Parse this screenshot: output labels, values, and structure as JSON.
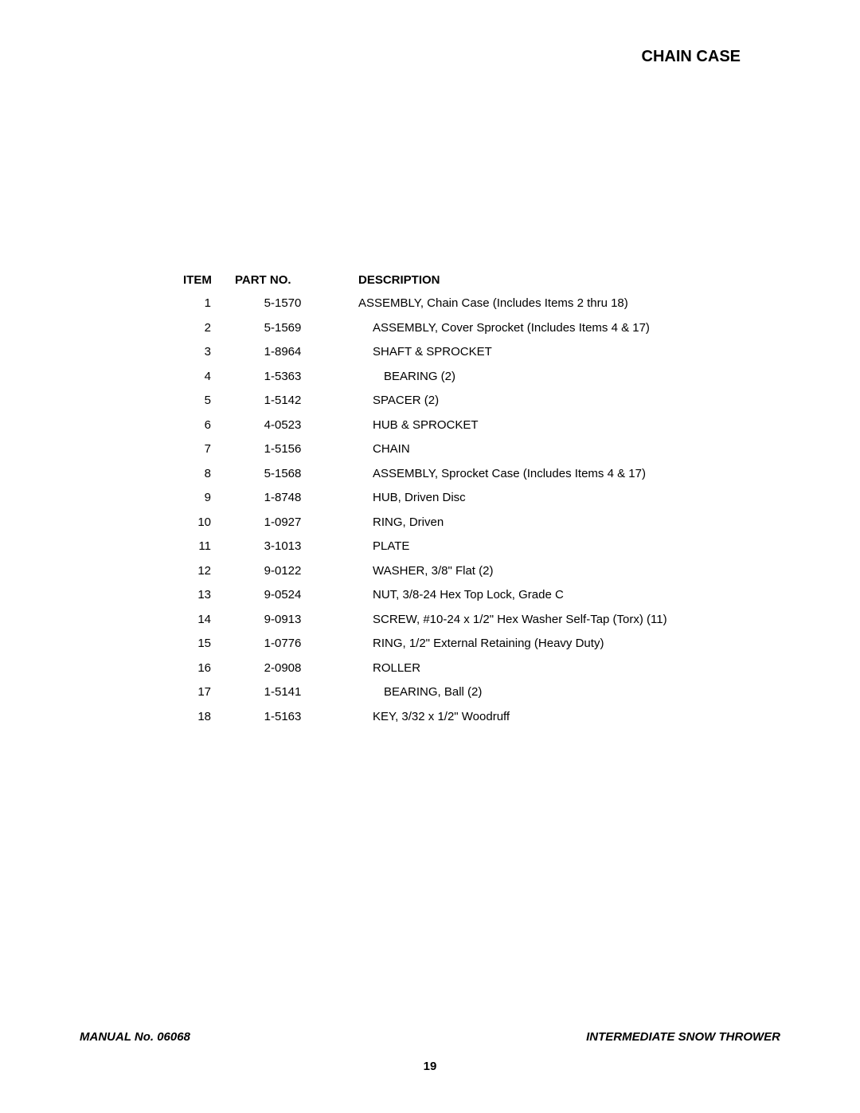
{
  "title": "CHAIN CASE",
  "table": {
    "headers": {
      "item": "ITEM",
      "partno": "PART NO.",
      "description": "DESCRIPTION"
    },
    "rows": [
      {
        "item": "1",
        "partno": "5-1570",
        "description": "ASSEMBLY, Chain Case (Includes Items 2 thru 18)",
        "indent": 0
      },
      {
        "item": "2",
        "partno": "5-1569",
        "description": "ASSEMBLY, Cover Sprocket (Includes Items 4 & 17)",
        "indent": 1
      },
      {
        "item": "3",
        "partno": "1-8964",
        "description": "SHAFT & SPROCKET",
        "indent": 1
      },
      {
        "item": "4",
        "partno": "1-5363",
        "description": "BEARING (2)",
        "indent": 2
      },
      {
        "item": "5",
        "partno": "1-5142",
        "description": "SPACER (2)",
        "indent": 1
      },
      {
        "item": "6",
        "partno": "4-0523",
        "description": "HUB & SPROCKET",
        "indent": 1
      },
      {
        "item": "7",
        "partno": "1-5156",
        "description": "CHAIN",
        "indent": 1
      },
      {
        "item": "8",
        "partno": "5-1568",
        "description": "ASSEMBLY, Sprocket Case (Includes Items 4 & 17)",
        "indent": 1
      },
      {
        "item": "9",
        "partno": "1-8748",
        "description": "HUB, Driven Disc",
        "indent": 1
      },
      {
        "item": "10",
        "partno": "1-0927",
        "description": "RING, Driven",
        "indent": 1
      },
      {
        "item": "11",
        "partno": "3-1013",
        "description": "PLATE",
        "indent": 1
      },
      {
        "item": "12",
        "partno": "9-0122",
        "description": "WASHER, 3/8\" Flat (2)",
        "indent": 1
      },
      {
        "item": "13",
        "partno": "9-0524",
        "description": "NUT, 3/8-24 Hex Top Lock, Grade C",
        "indent": 1
      },
      {
        "item": "14",
        "partno": "9-0913",
        "description": "SCREW, #10-24 x 1/2\" Hex Washer Self-Tap (Torx) (11)",
        "indent": 1
      },
      {
        "item": "15",
        "partno": "1-0776",
        "description": "RING, 1/2\" External Retaining (Heavy Duty)",
        "indent": 1
      },
      {
        "item": "16",
        "partno": "2-0908",
        "description": "ROLLER",
        "indent": 1
      },
      {
        "item": "17",
        "partno": "1-5141",
        "description": "BEARING, Ball (2)",
        "indent": 2
      },
      {
        "item": "18",
        "partno": "1-5163",
        "description": "KEY, 3/32 x 1/2\" Woodruff",
        "indent": 1
      }
    ]
  },
  "footer": {
    "manual": "MANUAL No. 06068",
    "product": "INTERMEDIATE SNOW THROWER",
    "page": "19"
  }
}
